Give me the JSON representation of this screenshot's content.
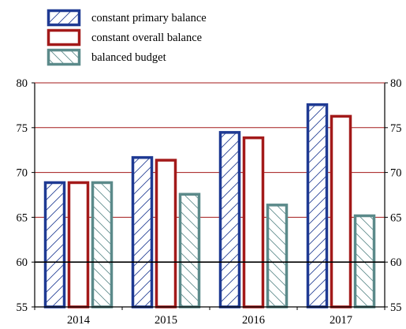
{
  "chart_data": {
    "type": "bar",
    "categories": [
      "2014",
      "2015",
      "2016",
      "2017"
    ],
    "series": [
      {
        "name": "constant primary balance",
        "values": [
          69.0,
          71.8,
          74.6,
          77.7
        ],
        "color": "#1f3a93",
        "pattern": "hatch-forward"
      },
      {
        "name": "constant overall balance",
        "values": [
          69.0,
          71.5,
          74.0,
          76.4
        ],
        "color": "#a31a1a",
        "pattern": "none"
      },
      {
        "name": "balanced budget",
        "values": [
          69.0,
          67.7,
          66.5,
          65.3
        ],
        "color": "#5b8a8a",
        "pattern": "hatch-back"
      }
    ],
    "yticks": [
      "55",
      "60",
      "65",
      "70",
      "75",
      "80"
    ],
    "ylim": [
      55,
      80
    ],
    "reference_line": 60,
    "grid": true,
    "grid_color": "#a31a1a",
    "legend_position": "top-left",
    "right_axis": true
  }
}
